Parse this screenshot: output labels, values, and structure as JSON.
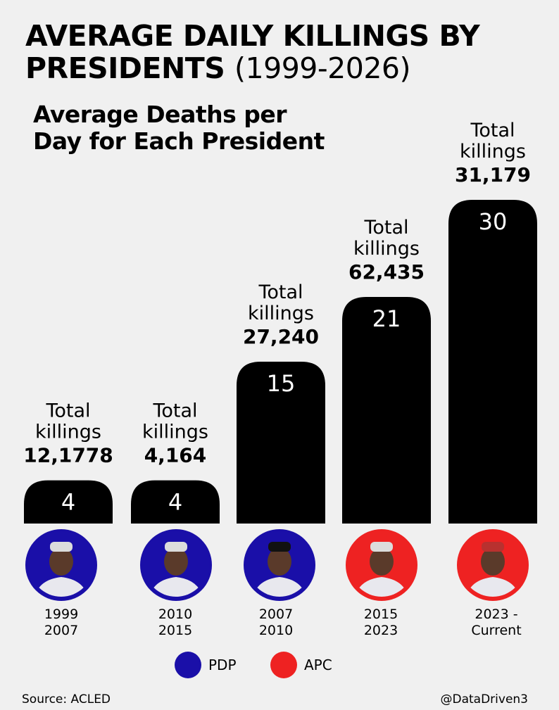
{
  "title_main": "AVERAGE DAILY KILLINGS BY PRESIDENTS",
  "title_paren": "(1999-2026)",
  "subtitle": "Average Deaths per Day  for Each President",
  "colors": {
    "PDP": "#1a0fa8",
    "APC": "#ee2222",
    "bar": "#000000",
    "background": "#f0f0f0"
  },
  "chart_data": {
    "type": "bar",
    "title": "Average Deaths per Day for Each President",
    "unit": "average deaths per day",
    "categories": [
      "1999 2007",
      "2010 2015",
      "2007 2010",
      "2015 2023",
      "2023 - Current"
    ],
    "values": [
      4,
      4,
      15,
      21,
      30
    ],
    "total_killings": [
      "12,1778",
      "4,164",
      "27,240",
      "62,435",
      "31,179"
    ],
    "total_label_line1": "Total",
    "total_label_line2": "killings",
    "ylim": [
      0,
      30
    ],
    "axes_shown": false,
    "bars": [
      {
        "value": 4,
        "value_label": "4",
        "total": "12,1778",
        "period_line1": "1999",
        "period_line2": "2007",
        "party": "PDP"
      },
      {
        "value": 4,
        "value_label": "4",
        "total": "4,164",
        "period_line1": "2010",
        "period_line2": "2015",
        "party": "PDP"
      },
      {
        "value": 15,
        "value_label": "15",
        "total": "27,240",
        "period_line1": "2007",
        "period_line2": "2010",
        "party": "PDP"
      },
      {
        "value": 21,
        "value_label": "21",
        "total": "62,435",
        "period_line1": "2015",
        "period_line2": "2023",
        "party": "APC"
      },
      {
        "value": 30,
        "value_label": "30",
        "total": "31,179",
        "period_line1": "2023 -",
        "period_line2": "Current",
        "party": "APC"
      }
    ]
  },
  "legend": [
    {
      "party": "PDP",
      "label": "PDP"
    },
    {
      "party": "APC",
      "label": "APC"
    }
  ],
  "source": "Source: ACLED",
  "handle": "@DataDriven3"
}
